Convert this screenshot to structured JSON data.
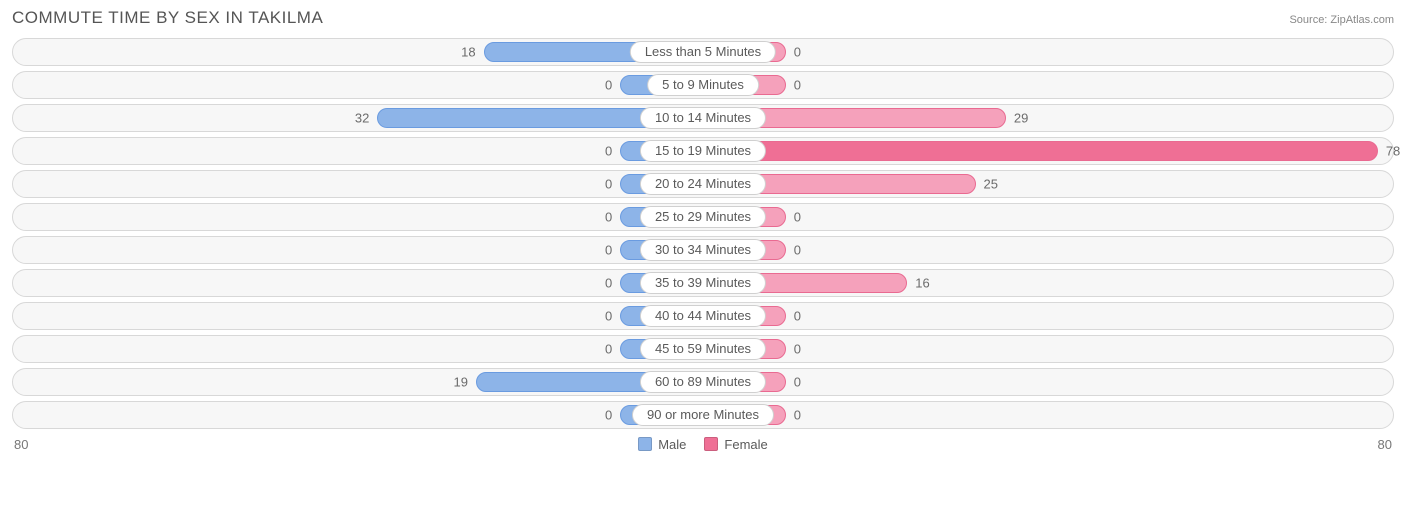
{
  "header": {
    "title": "COMMUTE TIME BY SEX IN TAKILMA",
    "source": "Source: ZipAtlas.com"
  },
  "chart": {
    "type": "diverging-bar",
    "axis_max": 80,
    "min_bar_width_pct": 12,
    "colors": {
      "male_fill": "#8db4e8",
      "male_border": "#6a9be0",
      "female_fill": "#f5a1bb",
      "female_border": "#e96a91",
      "female_highlight_fill": "#ef6f95",
      "row_bg": "#f7f7f7",
      "row_border": "#d8d8d8",
      "pill_bg": "#ffffff",
      "pill_border": "#d0d0d0",
      "text": "#6b6b6b",
      "title_text": "#555555"
    },
    "axis_labels": {
      "left": "80",
      "right": "80"
    },
    "legend": [
      {
        "label": "Male",
        "color": "#8db4e8"
      },
      {
        "label": "Female",
        "color": "#ef6f95"
      }
    ],
    "rows": [
      {
        "category": "Less than 5 Minutes",
        "male": 18,
        "female": 0
      },
      {
        "category": "5 to 9 Minutes",
        "male": 0,
        "female": 0
      },
      {
        "category": "10 to 14 Minutes",
        "male": 32,
        "female": 29
      },
      {
        "category": "15 to 19 Minutes",
        "male": 0,
        "female": 78,
        "female_highlight": true
      },
      {
        "category": "20 to 24 Minutes",
        "male": 0,
        "female": 25
      },
      {
        "category": "25 to 29 Minutes",
        "male": 0,
        "female": 0
      },
      {
        "category": "30 to 34 Minutes",
        "male": 0,
        "female": 0
      },
      {
        "category": "35 to 39 Minutes",
        "male": 0,
        "female": 16
      },
      {
        "category": "40 to 44 Minutes",
        "male": 0,
        "female": 0
      },
      {
        "category": "45 to 59 Minutes",
        "male": 0,
        "female": 0
      },
      {
        "category": "60 to 89 Minutes",
        "male": 19,
        "female": 0
      },
      {
        "category": "90 or more Minutes",
        "male": 0,
        "female": 0
      }
    ]
  }
}
